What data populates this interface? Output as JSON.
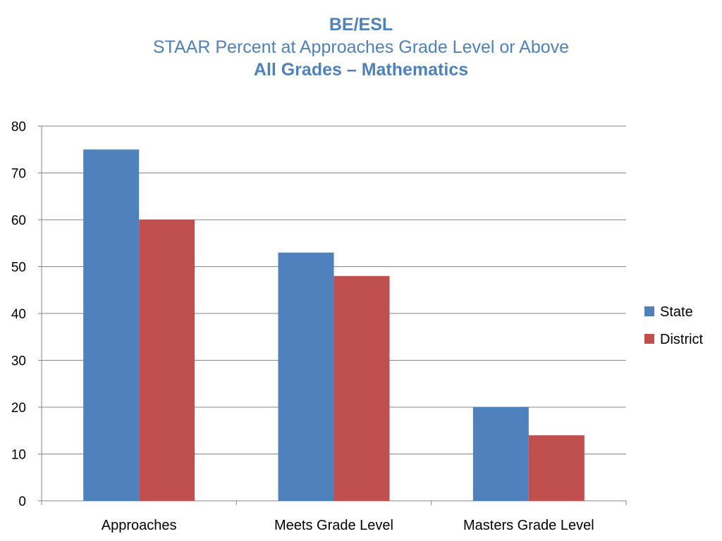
{
  "title": {
    "line1": "BE/ESL",
    "line2": "STAAR Percent at Approaches Grade Level or Above",
    "line3": "All Grades – Mathematics"
  },
  "chart_data": {
    "type": "bar",
    "title": "BE/ESL STAAR Percent at Approaches Grade Level or Above All Grades – Mathematics",
    "categories": [
      "Approaches",
      "Meets Grade Level",
      "Masters Grade Level"
    ],
    "series": [
      {
        "name": "State",
        "values": [
          75,
          53,
          20
        ],
        "color": "#4f81bd"
      },
      {
        "name": "District",
        "values": [
          60,
          48,
          14
        ],
        "color": "#c0504d"
      }
    ],
    "xlabel": "",
    "ylabel": "",
    "ylim": [
      0,
      80
    ],
    "yticks": [
      0,
      10,
      20,
      30,
      40,
      50,
      60,
      70,
      80
    ],
    "grid": true,
    "legend_position": "right"
  },
  "colors": {
    "title": "#4f81bd",
    "gridline": "#868686",
    "axis": "#868686"
  }
}
